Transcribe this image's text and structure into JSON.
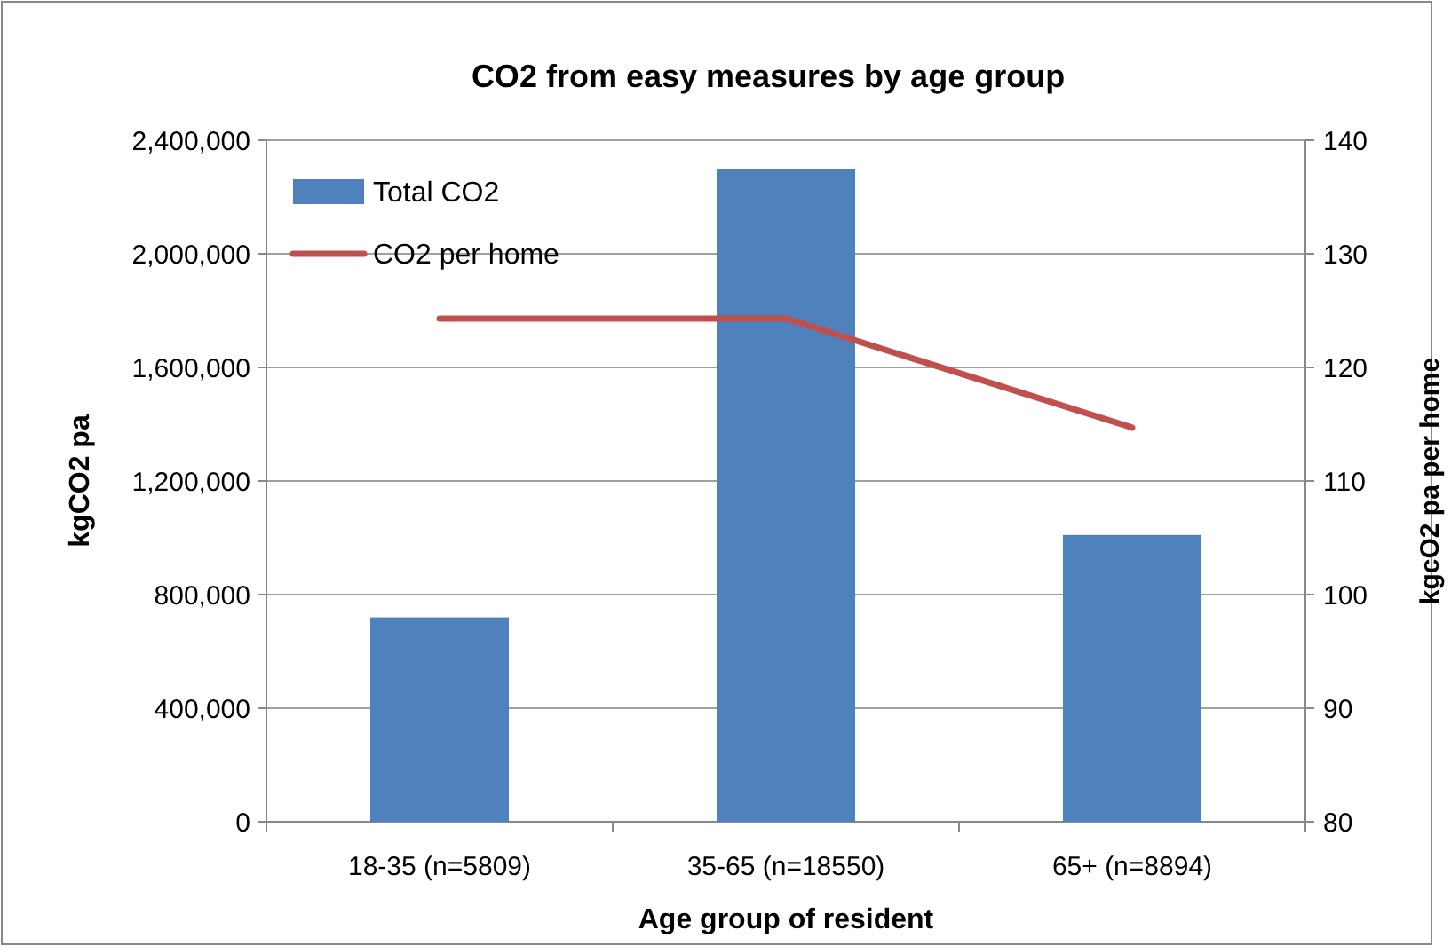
{
  "chart_data": {
    "type": "bar",
    "title": "CO2 from easy measures by age group",
    "xlabel": "Age group of resident",
    "ylabel": "kgCO2 pa",
    "y2label": "kgcO2 pa per home",
    "categories": [
      "18-35 (n=5809)",
      "35-65 (n=18550)",
      "65+ (n=8894)"
    ],
    "series": [
      {
        "name": "Total CO2",
        "color": "#4f81bd",
        "values": [
          720000,
          2300000,
          1010000
        ]
      },
      {
        "name": "CO2 per home",
        "type": "line",
        "axis": "y2",
        "color": "#c0504d",
        "values": [
          124.3,
          124.3,
          114.7
        ]
      }
    ],
    "ylim": [
      0,
      2400000
    ],
    "yticks": [
      {
        "value": 0,
        "label": "0"
      },
      {
        "value": 400000,
        "label": "400,000"
      },
      {
        "value": 800000,
        "label": "800,000"
      },
      {
        "value": 1200000,
        "label": "1,200,000"
      },
      {
        "value": 1600000,
        "label": "1,600,000"
      },
      {
        "value": 2000000,
        "label": "2,000,000"
      },
      {
        "value": 2400000,
        "label": "2,400,000"
      }
    ],
    "y2lim": [
      80,
      140
    ],
    "y2ticks": [
      80,
      90,
      100,
      110,
      120,
      130,
      140
    ],
    "grid": "y",
    "legend": "top left",
    "marker": "none",
    "line_style": "solid"
  }
}
